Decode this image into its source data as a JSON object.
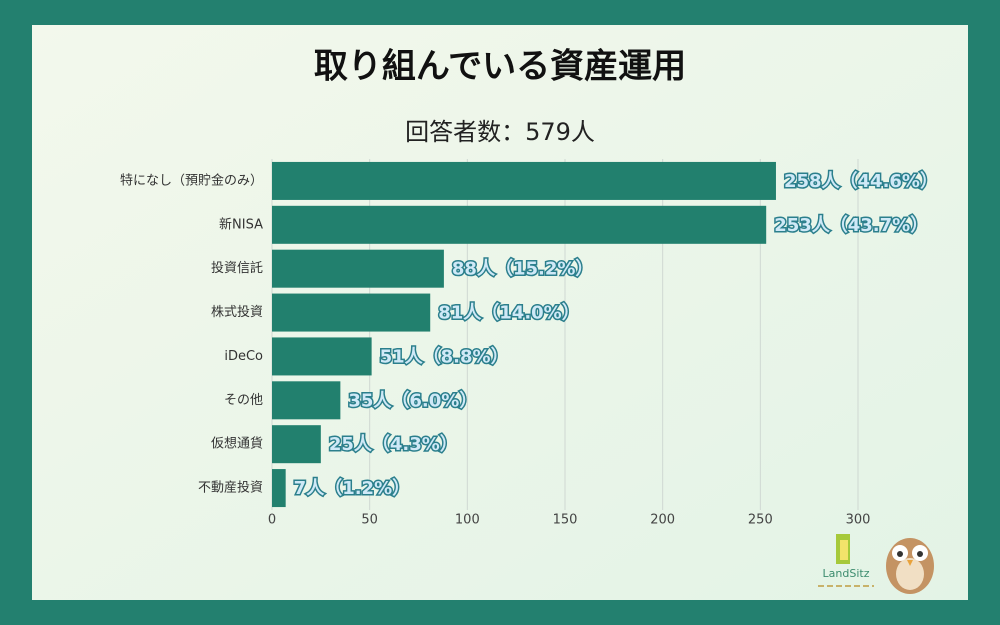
{
  "chart_data": {
    "type": "bar",
    "orientation": "horizontal",
    "title": "取り組んでいる資産運用",
    "subtitle": "回答者数：579人",
    "categories": [
      "特になし（預貯金のみ）",
      "新NISA",
      "投資信託",
      "株式投資",
      "iDeCo",
      "その他",
      "仮想通貨",
      "不動産投資"
    ],
    "values": [
      258,
      253,
      88,
      81,
      51,
      35,
      25,
      7
    ],
    "value_labels": [
      "258人（44.6%）",
      "253人（43.7%）",
      "88人（15.2%）",
      "81人（14.0%）",
      "51人（8.8%）",
      "35人（6.0%）",
      "25人（4.3%）",
      "7人（1.2%）"
    ],
    "color": "#22806e",
    "xlim": [
      0,
      300
    ],
    "xticks": [
      0,
      50,
      100,
      150,
      200,
      250,
      300
    ],
    "grid": true
  },
  "brand": {
    "logo": "LandSitz"
  }
}
